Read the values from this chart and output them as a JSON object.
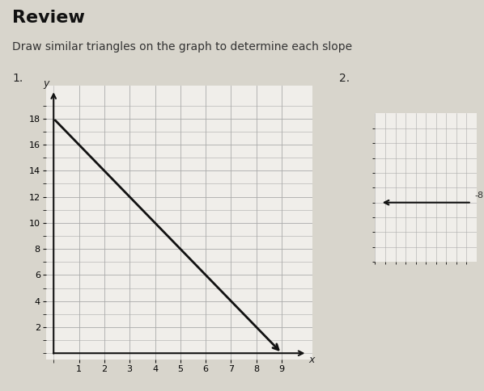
{
  "title": "Review",
  "subtitle": "Draw similar triangles on the graph to determine each slope",
  "label1": "1.",
  "label2": "2.",
  "bg_color": "#d8d5cc",
  "graph_bg": "#f0eeea",
  "grid_color": "#aaaaaa",
  "axis_color": "#111111",
  "line_color": "#111111",
  "line_x": [
    0,
    9
  ],
  "line_y": [
    18,
    0
  ],
  "xlim": [
    -0.3,
    10.2
  ],
  "ylim": [
    -0.5,
    20.5
  ],
  "xticks": [
    1,
    2,
    3,
    4,
    5,
    6,
    7,
    8,
    9
  ],
  "yticks": [
    2,
    4,
    6,
    8,
    10,
    12,
    14,
    16,
    18
  ],
  "xlabel": "x",
  "ylabel": "y",
  "title_fontsize": 16,
  "subtitle_fontsize": 10,
  "tick_fontsize": 8,
  "label_neg8": "-8"
}
